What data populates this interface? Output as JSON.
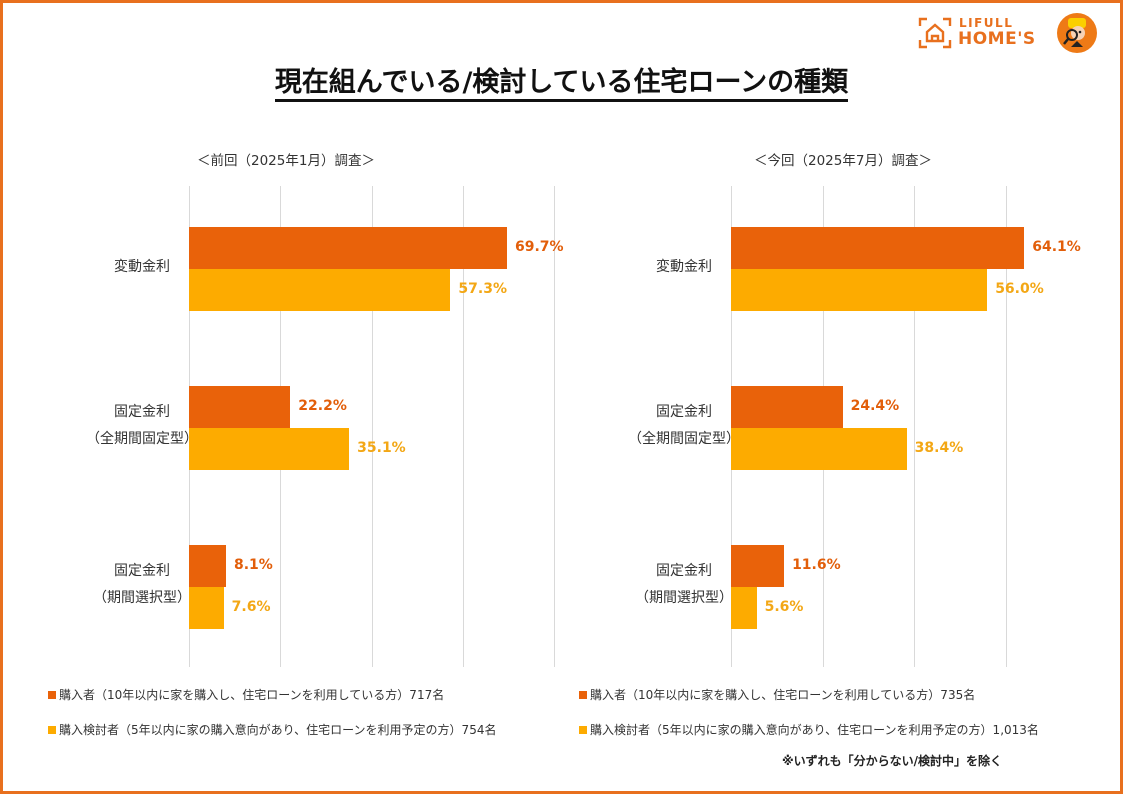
{
  "brand": {
    "logo_top": "LIFULL",
    "logo_bottom": "HOME'S",
    "accent_color": "#e8701e"
  },
  "title": "現在組んでいる/検討している住宅ローンの種類",
  "legend_colors": {
    "buyer": "#e9620a",
    "consider": "#fdab00"
  },
  "note": "※いずれも「分からない/検討中」を除く",
  "chart_data": [
    {
      "type": "bar",
      "orientation": "horizontal",
      "title": "＜前回（2025年1月）調査＞",
      "categories": [
        "変動金利",
        "固定金利\n（全期間固定型）",
        "固定金利\n（期間選択型）"
      ],
      "category_lines": [
        [
          "変動金利"
        ],
        [
          "固定金利",
          "（全期間固定型）"
        ],
        [
          "固定金利",
          "（期間選択型）"
        ]
      ],
      "series": [
        {
          "name": "購入者（10年以内に家を購入し、住宅ローンを利用している方）717名",
          "key": "buyer",
          "values": [
            69.7,
            22.2,
            8.1
          ],
          "labels": [
            "69.7%",
            "22.2%",
            "8.1%"
          ]
        },
        {
          "name": "購入検討者（5年以内に家の購入意向があり、住宅ローンを利用予定の方）754名",
          "key": "consider",
          "values": [
            57.3,
            35.1,
            7.6
          ],
          "labels": [
            "57.3%",
            "35.1%",
            "7.6%"
          ]
        }
      ],
      "xlim": [
        0,
        80
      ],
      "gridlines": [
        0,
        20,
        40,
        60,
        80
      ],
      "grid": true,
      "unit": "%",
      "legend_position": "bottom"
    },
    {
      "type": "bar",
      "orientation": "horizontal",
      "title": "＜今回（2025年7月）調査＞",
      "categories": [
        "変動金利",
        "固定金利\n（全期間固定型）",
        "固定金利\n（期間選択型）"
      ],
      "category_lines": [
        [
          "変動金利"
        ],
        [
          "固定金利",
          "（全期間固定型）"
        ],
        [
          "固定金利",
          "（期間選択型）"
        ]
      ],
      "series": [
        {
          "name": "購入者（10年以内に家を購入し、住宅ローンを利用している方）735名",
          "key": "buyer",
          "values": [
            64.1,
            24.4,
            11.6
          ],
          "labels": [
            "64.1%",
            "24.4%",
            "11.6%"
          ]
        },
        {
          "name": "購入検討者（5年以内に家の購入意向があり、住宅ローンを利用予定の方）1,013名",
          "key": "consider",
          "values": [
            56.0,
            38.4,
            5.6
          ],
          "labels": [
            "56.0%",
            "38.4%",
            "5.6%"
          ]
        }
      ],
      "xlim": [
        0,
        80
      ],
      "gridlines": [
        0,
        20,
        40,
        60
      ],
      "grid": true,
      "unit": "%",
      "legend_position": "bottom"
    }
  ]
}
